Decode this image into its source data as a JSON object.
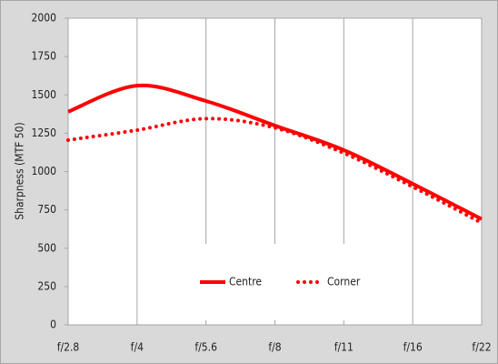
{
  "chart_data": {
    "type": "line",
    "y_label": "Sharpness (MTF 50)",
    "categories": [
      "f/2.8",
      "f/4",
      "f/5.6",
      "f/8",
      "f/11",
      "f/16",
      "f/22"
    ],
    "series": [
      {
        "name": "Centre",
        "color": "#ff0000",
        "style": "solid",
        "values": [
          1390,
          1560,
          1460,
          1300,
          1140,
          920,
          690
        ]
      },
      {
        "name": "Corner",
        "color": "#ff0000",
        "style": "dotted",
        "values": [
          1205,
          1270,
          1345,
          1285,
          1120,
          900,
          665
        ]
      }
    ],
    "ylim": [
      0,
      2000
    ],
    "yticks": [
      0,
      250,
      500,
      750,
      1000,
      1250,
      1500,
      1750,
      2000
    ],
    "xgrid": true,
    "legend": "lower center"
  }
}
